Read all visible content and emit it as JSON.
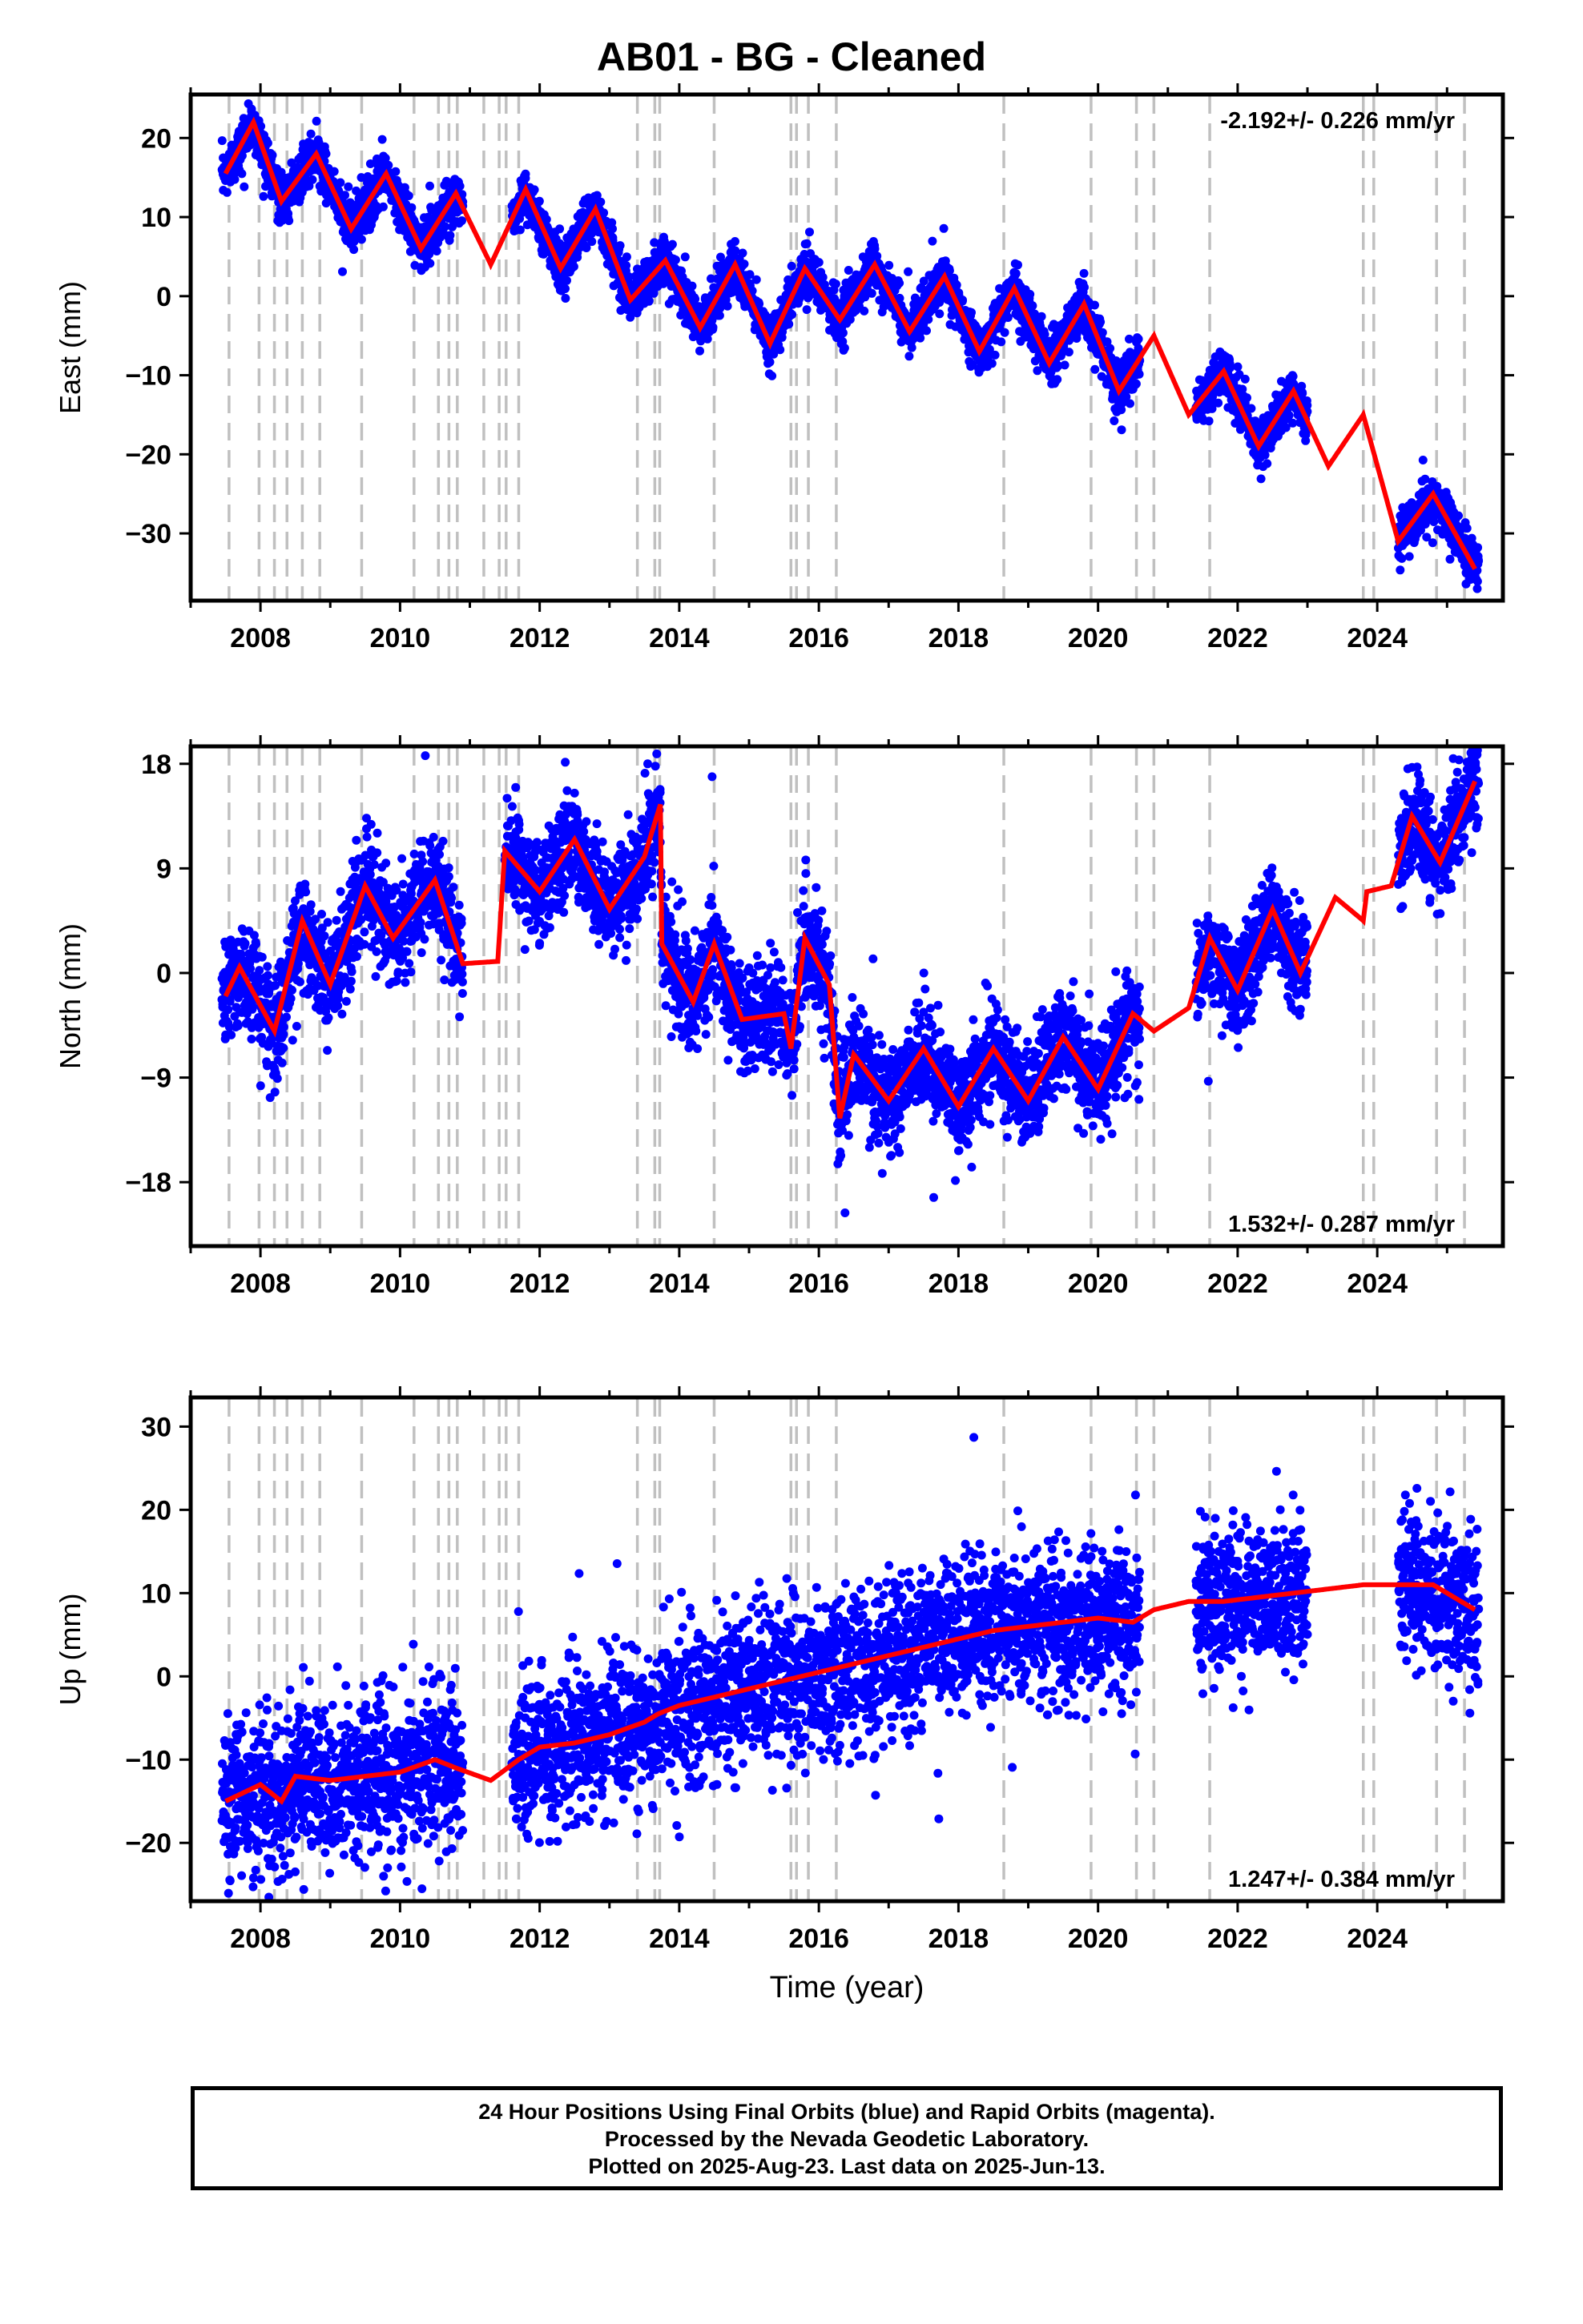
{
  "title": "AB01  - BG - Cleaned",
  "footer": {
    "line1": "24 Hour Positions Using Final Orbits (blue) and Rapid Orbits (magenta).",
    "line2": "Processed by the Nevada Geodetic Laboratory.",
    "line3": "Plotted on 2025-Aug-23. Last data on 2025-Jun-13."
  },
  "colors": {
    "final_orbits": "#0000ff",
    "model_fit": "#ff0000",
    "offset_lines": "#c0c0c0",
    "frame": "#000000"
  },
  "chart_data": [
    {
      "type": "scatter",
      "component": "East",
      "ylabel": "East (mm)",
      "xlabel": "",
      "rate_label": "-2.192+/- 0.226 mm/yr",
      "rate_position": "top-right",
      "xlim": [
        2007.0,
        2025.8
      ],
      "ylim": [
        -38.5,
        25.5
      ],
      "xticks": [
        2008,
        2010,
        2012,
        2014,
        2016,
        2018,
        2020,
        2022,
        2024
      ],
      "yticks": [
        20,
        10,
        0,
        -10,
        -20,
        -30
      ],
      "offset_lines": [
        2007.55,
        2007.98,
        2008.2,
        2008.38,
        2008.6,
        2008.85,
        2009.45,
        2010.2,
        2010.55,
        2010.7,
        2010.82,
        2011.2,
        2011.42,
        2011.52,
        2011.7,
        2013.4,
        2013.65,
        2013.72,
        2014.5,
        2015.6,
        2015.68,
        2015.85,
        2016.25,
        2018.65,
        2019.9,
        2020.55,
        2020.8,
        2021.6,
        2023.8,
        2023.95,
        2024.85,
        2025.25
      ],
      "data_gaps": [
        [
          2010.9,
          2011.6
        ],
        [
          2020.6,
          2021.4
        ],
        [
          2023.0,
          2024.3
        ]
      ],
      "series": [
        {
          "trend": {
            "t0": 2007.5,
            "v0": 17.0,
            "v1": -35.0,
            "break_year": 2008.2
          },
          "seasonal_amplitude": 5.5,
          "seasonal_peak_doy_fraction": 0.85,
          "scatter": 1.5
        }
      ],
      "model_values": {
        "x": [
          2007.5,
          2007.9,
          2008.3,
          2008.8,
          2009.3,
          2009.8,
          2010.3,
          2010.8,
          2011.3,
          2011.8,
          2012.3,
          2012.8,
          2013.3,
          2013.8,
          2014.3,
          2014.8,
          2015.3,
          2015.8,
          2016.3,
          2016.8,
          2017.3,
          2017.8,
          2018.3,
          2018.8,
          2019.3,
          2019.8,
          2020.3,
          2020.8,
          2021.3,
          2021.8,
          2022.3,
          2022.8,
          2023.3,
          2023.8,
          2024.3,
          2024.8,
          2025.4
        ],
        "y": [
          15.5,
          22.0,
          12.0,
          18.0,
          8.5,
          15.5,
          6.0,
          13.0,
          4.0,
          13.5,
          3.5,
          11.0,
          -0.5,
          4.5,
          -4.0,
          4.0,
          -6.0,
          3.5,
          -3.0,
          4.0,
          -4.5,
          2.5,
          -7.0,
          1.0,
          -8.5,
          -1.0,
          -12.0,
          -5.0,
          -15.0,
          -9.5,
          -19.0,
          -12.0,
          -21.5,
          -15.0,
          -31.0,
          -25.0,
          -34.5
        ]
      }
    },
    {
      "type": "scatter",
      "component": "North",
      "ylabel": "North (mm)",
      "xlabel": "",
      "rate_label": "1.532+/- 0.287 mm/yr",
      "rate_position": "bottom-right",
      "xlim": [
        2007.0,
        2025.8
      ],
      "ylim": [
        -23.5,
        19.5
      ],
      "xticks": [
        2008,
        2010,
        2012,
        2014,
        2016,
        2018,
        2020,
        2022,
        2024
      ],
      "yticks": [
        18,
        9,
        0,
        -9,
        -18
      ],
      "offset_lines": [
        2007.55,
        2007.98,
        2008.2,
        2008.38,
        2008.6,
        2008.85,
        2009.45,
        2010.2,
        2010.55,
        2010.7,
        2010.82,
        2011.2,
        2011.42,
        2011.52,
        2011.7,
        2013.4,
        2013.65,
        2013.72,
        2014.5,
        2015.6,
        2015.68,
        2015.85,
        2016.25,
        2018.65,
        2019.9,
        2020.55,
        2020.8,
        2021.6,
        2023.8,
        2023.95,
        2024.85,
        2025.25
      ],
      "data_gaps": [
        [
          2010.9,
          2011.5
        ],
        [
          2020.6,
          2021.4
        ],
        [
          2023.0,
          2024.3
        ]
      ],
      "series": [
        {
          "seasonal_amplitude": 3.5,
          "scatter": 2.2
        }
      ],
      "model_values": {
        "x": [
          2007.5,
          2007.7,
          2008.2,
          2008.6,
          2009.0,
          2009.5,
          2009.9,
          2010.5,
          2010.9,
          2011.4,
          2011.5,
          2012.0,
          2012.5,
          2013.0,
          2013.5,
          2013.73,
          2013.75,
          2014.2,
          2014.5,
          2014.9,
          2015.5,
          2015.6,
          2015.8,
          2016.15,
          2016.3,
          2016.5,
          2017.0,
          2017.5,
          2018.0,
          2018.5,
          2019.0,
          2019.5,
          2020.0,
          2020.5,
          2020.8,
          2021.3,
          2021.6,
          2022.0,
          2022.5,
          2022.9,
          2023.4,
          2023.8,
          2023.85,
          2024.2,
          2024.5,
          2024.9,
          2025.4
        ],
        "y": [
          -2.0,
          0.5,
          -5.0,
          4.5,
          -1.0,
          7.5,
          3.0,
          8.0,
          0.8,
          1.0,
          10.5,
          7.0,
          11.5,
          5.5,
          10.0,
          14.5,
          2.5,
          -2.5,
          2.5,
          -4.0,
          -3.5,
          -6.5,
          3.0,
          -1.0,
          -12.5,
          -7.0,
          -11.0,
          -6.5,
          -11.5,
          -6.5,
          -11.0,
          -5.5,
          -10.0,
          -3.5,
          -5.0,
          -3.0,
          3.0,
          -1.5,
          5.5,
          0.0,
          6.5,
          4.5,
          7.0,
          7.5,
          13.5,
          9.5,
          16.5
        ]
      }
    },
    {
      "type": "scatter",
      "component": "Up",
      "ylabel": "Up (mm)",
      "xlabel": "Time (year)",
      "rate_label": "1.247+/- 0.384 mm/yr",
      "rate_position": "bottom-right",
      "xlim": [
        2007.0,
        2025.8
      ],
      "ylim": [
        -27.0,
        33.5
      ],
      "xticks": [
        2008,
        2010,
        2012,
        2014,
        2016,
        2018,
        2020,
        2022,
        2024
      ],
      "yticks": [
        30,
        20,
        10,
        0,
        -10,
        -20
      ],
      "offset_lines": [
        2007.55,
        2007.98,
        2008.2,
        2008.38,
        2008.6,
        2008.85,
        2009.45,
        2010.2,
        2010.55,
        2010.7,
        2010.82,
        2011.2,
        2011.42,
        2011.52,
        2011.7,
        2013.4,
        2013.65,
        2013.72,
        2014.5,
        2015.6,
        2015.68,
        2015.85,
        2016.25,
        2018.65,
        2019.9,
        2020.55,
        2020.8,
        2021.6,
        2023.8,
        2023.95,
        2024.85,
        2025.25
      ],
      "data_gaps": [
        [
          2010.9,
          2011.6
        ],
        [
          2020.6,
          2021.4
        ],
        [
          2023.0,
          2024.3
        ]
      ],
      "series": [
        {
          "seasonal_amplitude": 1.2,
          "scatter": 4.5
        }
      ],
      "model_values": {
        "x": [
          2007.5,
          2008.0,
          2008.3,
          2008.5,
          2009.0,
          2009.5,
          2010.0,
          2010.5,
          2010.8,
          2011.3,
          2011.7,
          2012.0,
          2012.5,
          2013.0,
          2013.5,
          2013.7,
          2014.0,
          2014.5,
          2015.0,
          2015.5,
          2016.0,
          2016.5,
          2017.0,
          2017.5,
          2018.0,
          2018.5,
          2019.0,
          2019.5,
          2020.0,
          2020.5,
          2020.8,
          2021.3,
          2021.8,
          2022.3,
          2022.8,
          2023.3,
          2023.8,
          2024.3,
          2024.8,
          2025.4
        ],
        "y": [
          -15.0,
          -13.0,
          -15.0,
          -12.0,
          -12.5,
          -12.0,
          -11.5,
          -10.0,
          -11.0,
          -12.5,
          -10.0,
          -8.5,
          -8.0,
          -7.0,
          -5.5,
          -4.5,
          -3.5,
          -2.5,
          -1.5,
          -0.5,
          0.5,
          1.5,
          2.5,
          3.5,
          4.5,
          5.5,
          6.0,
          6.5,
          7.0,
          6.5,
          8.0,
          9.0,
          9.0,
          9.5,
          10.0,
          10.5,
          11.0,
          11.0,
          11.0,
          8.0
        ]
      }
    }
  ]
}
